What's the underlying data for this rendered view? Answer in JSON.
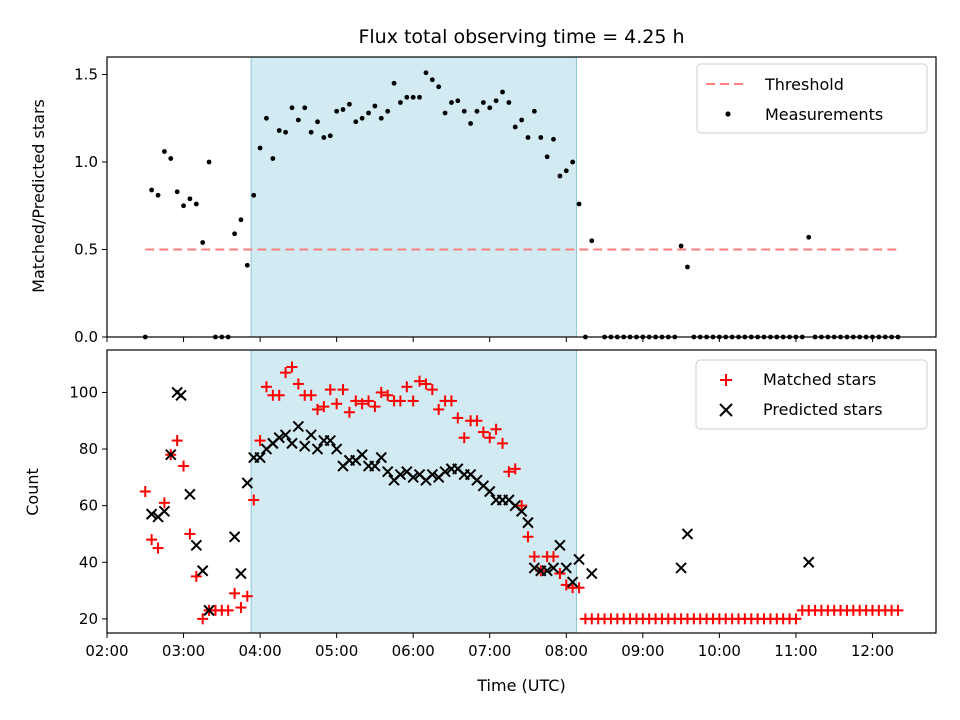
{
  "chart_data": [
    {
      "type": "scatter",
      "title": "Flux total observing time = 4.25 h",
      "xlabel": "",
      "ylabel": "Matched/Predicted stars",
      "xlim": [
        2.0,
        12.83
      ],
      "ylim": [
        0,
        1.6
      ],
      "yticks": [
        0.0,
        0.5,
        1.0,
        1.5
      ],
      "ytick_labels": [
        "0.0",
        "0.5",
        "1.0",
        "1.5"
      ],
      "legend_position": "upper right",
      "shaded_region": {
        "x": [
          3.883,
          8.133
        ],
        "color": "#add8e6"
      },
      "threshold": {
        "name": "Threshold",
        "y": 0.5,
        "x": [
          2.5,
          12.33
        ],
        "color": "#ff7f7f",
        "style": "dashed"
      },
      "series": [
        {
          "name": "Measurements",
          "marker": "dot",
          "color": "#000000",
          "x": [
            2.5,
            2.583,
            2.667,
            2.75,
            2.833,
            2.917,
            3.0,
            3.083,
            3.167,
            3.25,
            3.333,
            3.417,
            3.5,
            3.583,
            3.667,
            3.75,
            3.833,
            3.917,
            4.0,
            4.083,
            4.167,
            4.25,
            4.333,
            4.417,
            4.5,
            4.583,
            4.667,
            4.75,
            4.833,
            4.917,
            5.0,
            5.083,
            5.167,
            5.25,
            5.333,
            5.417,
            5.5,
            5.583,
            5.667,
            5.75,
            5.833,
            5.917,
            6.0,
            6.083,
            6.167,
            6.25,
            6.333,
            6.417,
            6.5,
            6.583,
            6.667,
            6.75,
            6.833,
            6.917,
            7.0,
            7.083,
            7.167,
            7.25,
            7.333,
            7.417,
            7.5,
            7.583,
            7.667,
            7.75,
            7.833,
            7.917,
            8.0,
            8.083,
            8.167,
            8.25,
            8.333,
            8.5,
            8.583,
            8.667,
            8.75,
            8.833,
            8.917,
            9.0,
            9.083,
            9.167,
            9.25,
            9.333,
            9.417,
            9.5,
            9.583,
            9.667,
            9.75,
            9.833,
            9.917,
            10.0,
            10.083,
            10.167,
            10.25,
            10.333,
            10.417,
            10.5,
            10.583,
            10.667,
            10.75,
            10.833,
            10.917,
            11.0,
            11.083,
            11.167,
            11.25,
            11.333,
            11.417,
            11.5,
            11.583,
            11.667,
            11.75,
            11.833,
            11.917,
            12.0,
            12.083,
            12.167,
            12.25,
            12.333
          ],
          "y": [
            0.0,
            0.84,
            0.81,
            1.06,
            1.02,
            0.83,
            0.75,
            0.79,
            0.76,
            0.54,
            1.0,
            0.0,
            0.0,
            0.0,
            0.59,
            0.67,
            0.41,
            0.81,
            1.08,
            1.25,
            1.02,
            1.18,
            1.17,
            1.31,
            1.24,
            1.31,
            1.17,
            1.23,
            1.14,
            1.15,
            1.29,
            1.3,
            1.33,
            1.23,
            1.25,
            1.28,
            1.32,
            1.25,
            1.29,
            1.45,
            1.34,
            1.37,
            1.37,
            1.37,
            1.51,
            1.47,
            1.43,
            1.28,
            1.34,
            1.35,
            1.29,
            1.22,
            1.29,
            1.34,
            1.31,
            1.35,
            1.4,
            1.34,
            1.2,
            1.24,
            1.14,
            1.29,
            1.14,
            1.03,
            1.13,
            0.92,
            0.95,
            1.0,
            0.76,
            0.0,
            0.55,
            0.0,
            0.0,
            0.0,
            0.0,
            0.0,
            0.0,
            0.0,
            0.0,
            0.0,
            0.0,
            0.0,
            0.0,
            0.52,
            0.4,
            0.0,
            0.0,
            0.0,
            0.0,
            0.0,
            0.0,
            0.0,
            0.0,
            0.0,
            0.0,
            0.0,
            0.0,
            0.0,
            0.0,
            0.0,
            0.0,
            0.0,
            0.0,
            0.57,
            0.0,
            0.0,
            0.0,
            0.0,
            0.0,
            0.0,
            0.0,
            0.0,
            0.0,
            0.0,
            0.0,
            0.0,
            0.0,
            0.0
          ]
        }
      ]
    },
    {
      "type": "scatter",
      "title": "",
      "xlabel": "Time (UTC)",
      "ylabel": "Count",
      "xlim": [
        2.0,
        12.83
      ],
      "ylim": [
        15,
        115
      ],
      "xticks": [
        2,
        3,
        4,
        5,
        6,
        7,
        8,
        9,
        10,
        11,
        12
      ],
      "xtick_labels": [
        "02:00",
        "03:00",
        "04:00",
        "05:00",
        "06:00",
        "07:00",
        "08:00",
        "09:00",
        "10:00",
        "11:00",
        "12:00"
      ],
      "yticks": [
        20,
        40,
        60,
        80,
        100
      ],
      "ytick_labels": [
        "20",
        "40",
        "60",
        "80",
        "100"
      ],
      "legend_position": "upper right",
      "shaded_region": {
        "x": [
          3.883,
          8.133
        ],
        "color": "#add8e6"
      },
      "series": [
        {
          "name": "Matched stars",
          "marker": "plus",
          "color": "#ff0000",
          "x": [
            2.5,
            2.583,
            2.667,
            2.75,
            2.833,
            2.917,
            3.0,
            3.083,
            3.167,
            3.25,
            3.333,
            3.417,
            3.5,
            3.583,
            3.667,
            3.75,
            3.833,
            3.917,
            4.0,
            4.083,
            4.167,
            4.25,
            4.333,
            4.417,
            4.5,
            4.583,
            4.667,
            4.75,
            4.833,
            4.917,
            5.0,
            5.083,
            5.167,
            5.25,
            5.333,
            5.417,
            5.5,
            5.583,
            5.667,
            5.75,
            5.833,
            5.917,
            6.0,
            6.083,
            6.167,
            6.25,
            6.333,
            6.417,
            6.5,
            6.583,
            6.667,
            6.75,
            6.833,
            6.917,
            7.0,
            7.083,
            7.167,
            7.25,
            7.333,
            7.417,
            7.5,
            7.583,
            7.667,
            7.75,
            7.833,
            7.917,
            8.0,
            8.083,
            8.167,
            8.25,
            8.333,
            8.417,
            8.5,
            8.583,
            8.667,
            8.75,
            8.833,
            8.917,
            9.0,
            9.083,
            9.167,
            9.25,
            9.333,
            9.417,
            9.5,
            9.583,
            9.667,
            9.75,
            9.833,
            9.917,
            10.0,
            10.083,
            10.167,
            10.25,
            10.333,
            10.417,
            10.5,
            10.583,
            10.667,
            10.75,
            10.833,
            10.917,
            11.0,
            11.083,
            11.167,
            11.25,
            11.333,
            11.417,
            11.5,
            11.583,
            11.667,
            11.75,
            11.833,
            11.917,
            12.0,
            12.083,
            12.167,
            12.25,
            12.333
          ],
          "y": [
            65,
            48,
            45,
            61,
            78,
            83,
            74,
            50,
            35,
            20,
            23,
            23,
            23,
            23,
            29,
            24,
            28,
            62,
            83,
            102,
            99,
            99,
            107,
            109,
            103,
            99,
            99,
            94,
            95,
            101,
            96,
            101,
            93,
            97,
            96,
            97,
            95,
            100,
            99,
            97,
            97,
            102,
            97,
            104,
            103,
            101,
            94,
            97,
            97,
            91,
            84,
            90,
            90,
            86,
            84,
            87,
            82,
            72,
            73,
            60,
            49,
            42,
            37,
            42,
            42,
            36,
            32,
            31,
            31,
            20,
            20,
            20,
            20,
            20,
            20,
            20,
            20,
            20,
            20,
            20,
            20,
            20,
            20,
            20,
            20,
            20,
            20,
            20,
            20,
            20,
            20,
            20,
            20,
            20,
            20,
            20,
            20,
            20,
            20,
            20,
            20,
            20,
            20,
            23,
            23,
            23,
            23,
            23,
            23,
            23,
            23,
            23,
            23,
            23,
            23,
            23,
            23,
            23,
            23
          ]
        },
        {
          "name": "Predicted stars",
          "marker": "x",
          "color": "#000000",
          "x": [
            2.583,
            2.667,
            2.75,
            2.833,
            2.917,
            2.967,
            3.083,
            3.167,
            3.25,
            3.333,
            3.667,
            3.75,
            3.833,
            3.917,
            4.0,
            4.083,
            4.167,
            4.25,
            4.333,
            4.417,
            4.5,
            4.583,
            4.667,
            4.75,
            4.833,
            4.917,
            5.0,
            5.083,
            5.167,
            5.25,
            5.333,
            5.417,
            5.5,
            5.583,
            5.667,
            5.75,
            5.833,
            5.917,
            6.0,
            6.083,
            6.167,
            6.25,
            6.333,
            6.417,
            6.5,
            6.583,
            6.667,
            6.75,
            6.833,
            6.917,
            7.0,
            7.083,
            7.167,
            7.25,
            7.333,
            7.417,
            7.5,
            7.583,
            7.667,
            7.75,
            7.833,
            7.917,
            8.0,
            8.083,
            8.167,
            8.333,
            9.5,
            9.583,
            11.167
          ],
          "y": [
            57,
            56,
            58,
            78,
            100,
            99,
            64,
            46,
            37,
            23,
            49,
            36,
            68,
            77,
            77,
            80,
            82,
            84,
            85,
            82,
            88,
            81,
            85,
            80,
            83,
            83,
            80,
            74,
            76,
            76,
            78,
            74,
            74,
            77,
            72,
            69,
            71,
            72,
            70,
            71,
            69,
            71,
            70,
            72,
            73,
            73,
            71,
            71,
            69,
            67,
            65,
            62,
            62,
            62,
            60,
            58,
            54,
            38,
            37,
            37,
            38,
            46,
            38,
            33,
            41,
            36,
            38,
            50,
            40
          ]
        }
      ]
    }
  ]
}
